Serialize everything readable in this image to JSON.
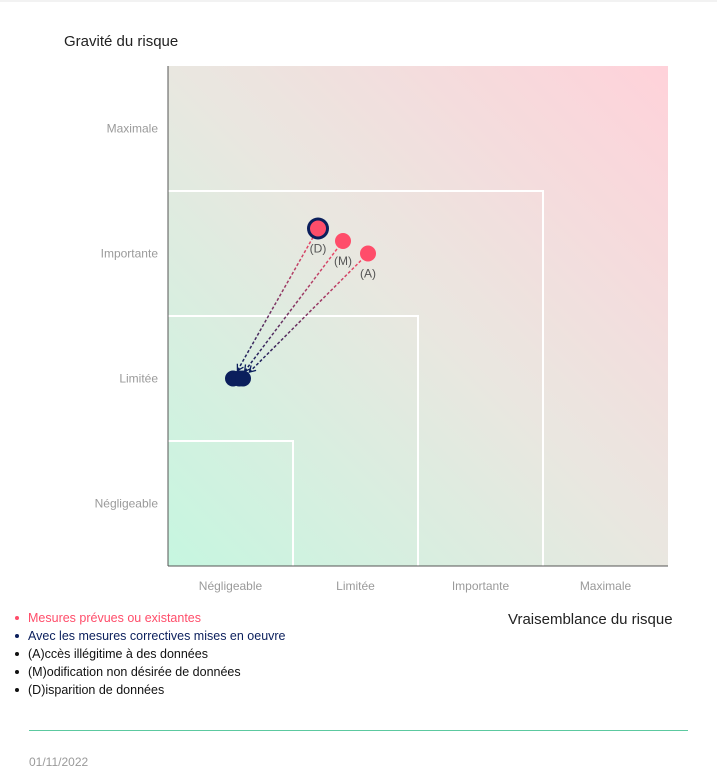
{
  "chart_data": {
    "type": "scatter",
    "ylabel": "Gravité du risque",
    "xlabel": "Vraisemblance du risque",
    "x_categories": [
      "Négligeable",
      "Limitée",
      "Importante",
      "Maximale"
    ],
    "y_categories": [
      "Négligeable",
      "Limitée",
      "Importante",
      "Maximale"
    ],
    "xlim": [
      0.5,
      4.5
    ],
    "ylim": [
      0.5,
      4.5
    ],
    "series": [
      {
        "name": "Mesures prévues ou existantes",
        "color": "#ff4d6a",
        "points": [
          {
            "label": "(D)",
            "x": 1.7,
            "y": 3.2
          },
          {
            "label": "(M)",
            "x": 1.9,
            "y": 3.1
          },
          {
            "label": "(A)",
            "x": 2.1,
            "y": 3.0
          }
        ]
      },
      {
        "name": "Avec les mesures correctives mises en oeuvre",
        "color": "#0b1f5c",
        "points": [
          {
            "label": "(D)",
            "x": 1.02,
            "y": 2.0
          },
          {
            "label": "(M)",
            "x": 1.07,
            "y": 2.0
          },
          {
            "label": "(A)",
            "x": 1.1,
            "y": 2.0
          }
        ]
      }
    ]
  },
  "legend": {
    "items": [
      {
        "text": "Mesures prévues ou existantes",
        "color": "#ff4d6a"
      },
      {
        "text": "Avec les mesures correctives mises en oeuvre",
        "color": "#0b1f5c"
      },
      {
        "text": "(A)ccès illégitime à des données",
        "color": "#111111"
      },
      {
        "text": "(M)odification non désirée de données",
        "color": "#111111"
      },
      {
        "text": "(D)isparition de données",
        "color": "#111111"
      }
    ]
  },
  "footer": {
    "date": "01/11/2022"
  }
}
